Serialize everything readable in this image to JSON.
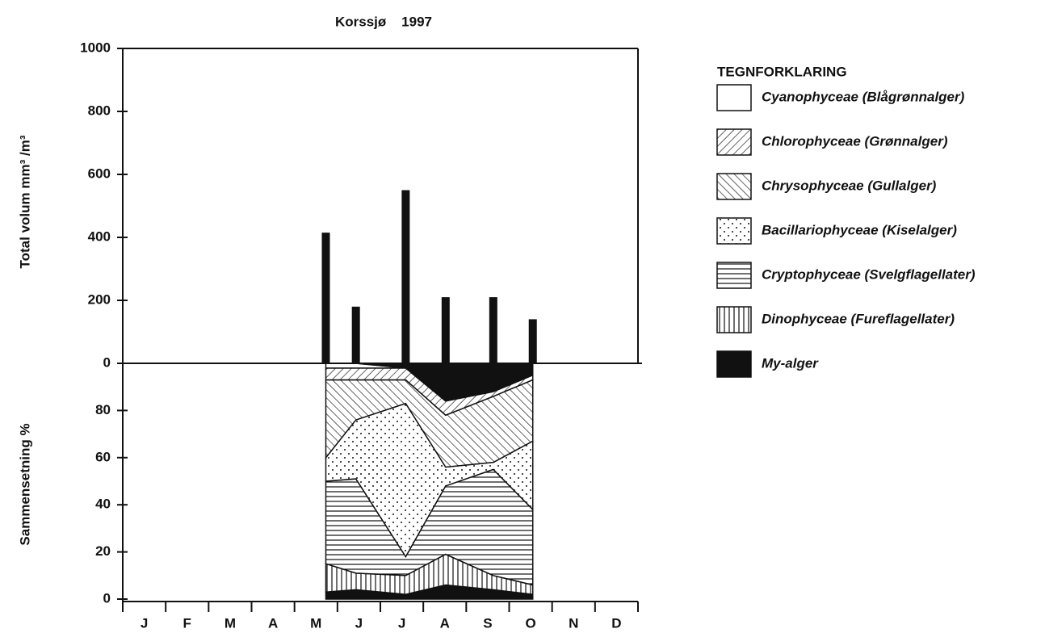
{
  "chart_data": [
    {
      "type": "bar",
      "title": "Korssjø    1997",
      "y_label": "Total volum mm³ /m³",
      "categories": [
        "J",
        "F",
        "M",
        "A",
        "M",
        "J",
        "J",
        "A",
        "S",
        "O",
        "N",
        "D"
      ],
      "xlim": [
        0,
        12
      ],
      "x": [
        4.73,
        5.43,
        6.59,
        7.52,
        8.63,
        9.55
      ],
      "values": [
        415,
        180,
        550,
        210,
        210,
        140
      ],
      "color": "#111111",
      "ylim": [
        0,
        1000
      ],
      "yticks": [
        0,
        200,
        400,
        600,
        800,
        1000
      ]
    },
    {
      "type": "stacked-area",
      "y_label": "Sammensetning %",
      "legend_title": "TEGNFORKLARING",
      "x": [
        4.73,
        5.43,
        6.59,
        7.52,
        8.63,
        9.55
      ],
      "xlim": [
        0,
        12
      ],
      "ylim": [
        0,
        100
      ],
      "yticks": [
        0,
        20,
        40,
        60,
        80
      ],
      "series": [
        {
          "name": "Cyanophyceae (Blågrønnalger)",
          "color": "#ffffff",
          "pattern": "none",
          "values": [
            2,
            2,
            0,
            0,
            0,
            0
          ]
        },
        {
          "name": "Chlorophyceae (Grønnalger)",
          "color": "#ffffff",
          "pattern": "slash",
          "values": [
            5,
            5,
            5,
            6,
            2,
            2
          ]
        },
        {
          "name": "Chrysophyceae (Gullalger)",
          "color": "#ffffff",
          "pattern": "backslash",
          "values": [
            33,
            17,
            10,
            22,
            28,
            26
          ]
        },
        {
          "name": "Bacillariophyceae (Kiselalger)",
          "color": "#ffffff",
          "pattern": "dots",
          "values": [
            10,
            25,
            65,
            8,
            3,
            29
          ]
        },
        {
          "name": "Cryptophyceae (Svelgflagellater)",
          "color": "#ffffff",
          "pattern": "horizontal",
          "values": [
            35,
            40,
            8,
            29,
            45,
            32
          ]
        },
        {
          "name": "Dinophyceae (Fureflagellater)",
          "color": "#ffffff",
          "pattern": "vertical",
          "values": [
            12,
            7,
            8,
            13,
            6,
            4
          ]
        },
        {
          "name": "My-alger",
          "color": "#111111",
          "pattern": "none",
          "values": [
            3,
            4,
            2,
            6,
            4,
            2
          ],
          "upper_values": [
            0,
            0,
            2,
            16,
            12,
            5
          ]
        }
      ]
    }
  ]
}
